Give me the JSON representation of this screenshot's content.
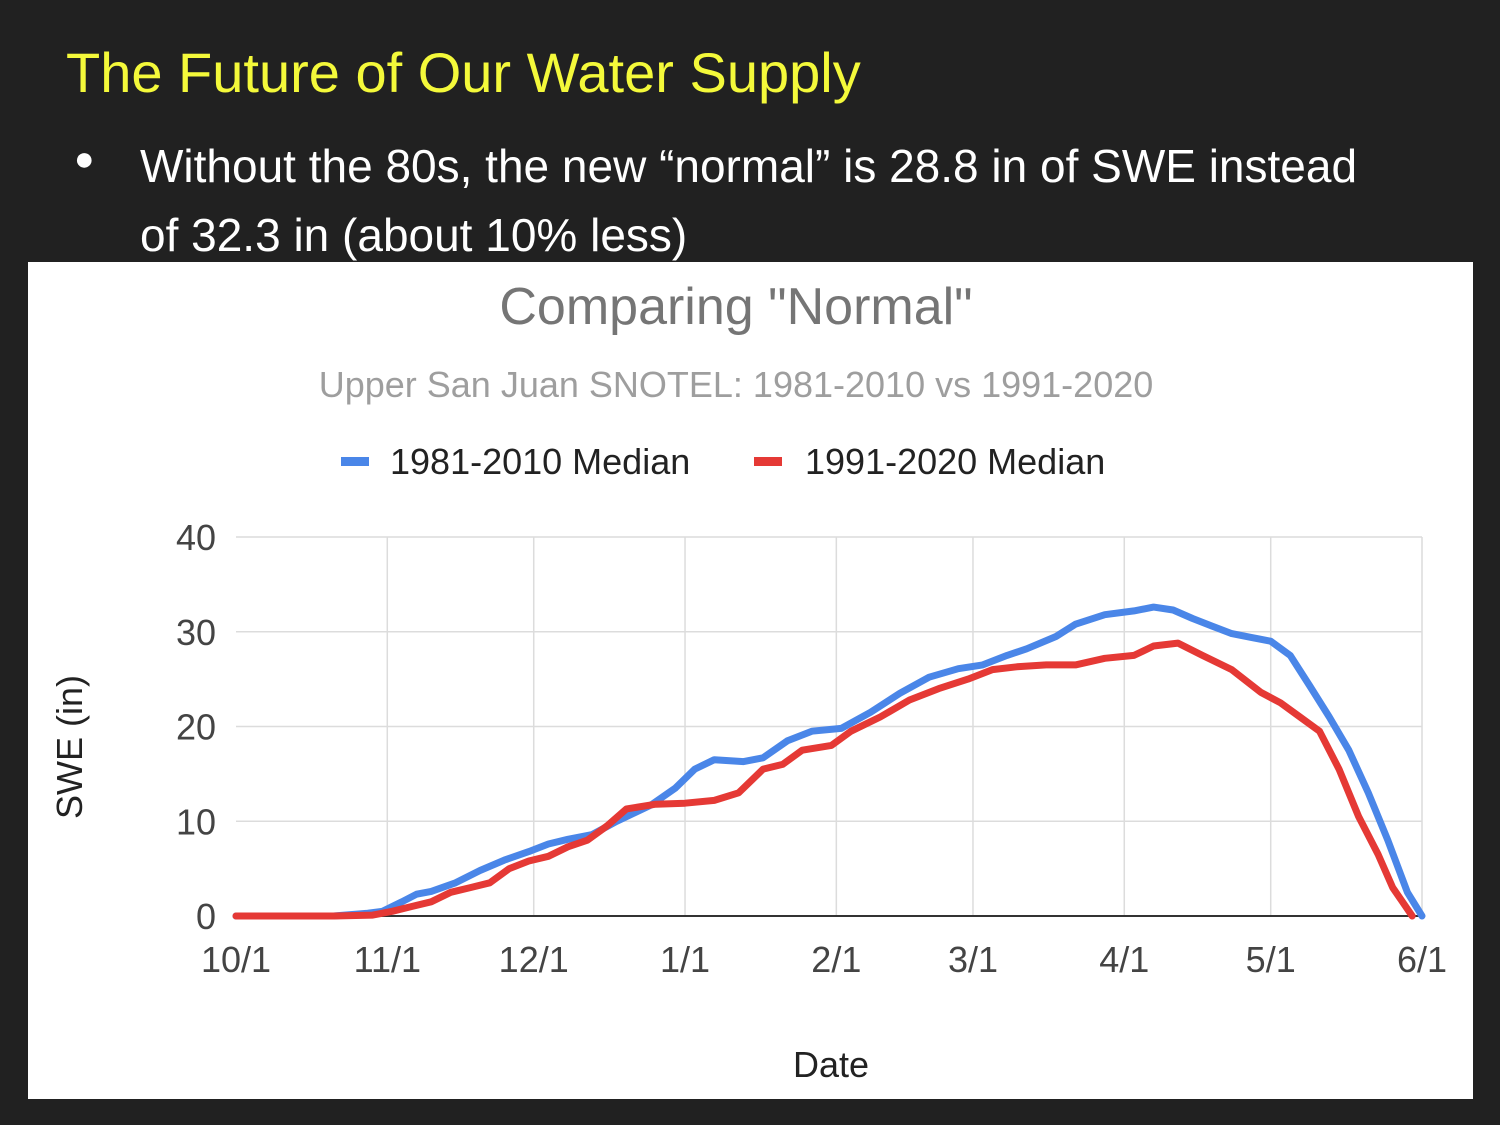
{
  "slide": {
    "title": "The Future of Our Water Supply",
    "bullet_symbol": "●",
    "bullet": "Without the 80s, the new “normal” is 28.8 in of SWE instead of 32.3 in (about 10% less)",
    "title_color": "#f4f93a",
    "background_color": "#212121"
  },
  "chart_data": {
    "type": "line",
    "title": "Comparing \"Normal\"",
    "subtitle": "Upper San Juan SNOTEL: 1981-2010 vs 1991-2020",
    "xlabel": "Date",
    "ylabel": "SWE (in)",
    "ylim": [
      0,
      40
    ],
    "yticks": [
      0,
      10,
      20,
      30,
      40
    ],
    "xlim_days": [
      0,
      243
    ],
    "x_unit": "days since 10/1",
    "xticks": [
      {
        "label": "10/1",
        "day": 0
      },
      {
        "label": "11/1",
        "day": 31
      },
      {
        "label": "12/1",
        "day": 61
      },
      {
        "label": "1/1",
        "day": 92
      },
      {
        "label": "2/1",
        "day": 123
      },
      {
        "label": "3/1",
        "day": 151
      },
      {
        "label": "4/1",
        "day": 182
      },
      {
        "label": "5/1",
        "day": 212
      },
      {
        "label": "6/1",
        "day": 243
      }
    ],
    "grid": true,
    "legend_position": "top",
    "series": [
      {
        "name": "1981-2010 Median",
        "color": "#4a86e8",
        "points": [
          [
            0,
            0
          ],
          [
            10,
            0
          ],
          [
            20,
            0
          ],
          [
            27,
            0.3
          ],
          [
            30,
            0.5
          ],
          [
            34,
            1.5
          ],
          [
            37,
            2.3
          ],
          [
            40,
            2.6
          ],
          [
            45,
            3.5
          ],
          [
            50,
            4.8
          ],
          [
            55,
            5.9
          ],
          [
            60,
            6.8
          ],
          [
            64,
            7.6
          ],
          [
            68,
            8.1
          ],
          [
            73,
            8.6
          ],
          [
            78,
            10.0
          ],
          [
            85,
            11.7
          ],
          [
            90,
            13.5
          ],
          [
            94,
            15.5
          ],
          [
            98,
            16.5
          ],
          [
            104,
            16.3
          ],
          [
            108,
            16.7
          ],
          [
            113,
            18.5
          ],
          [
            118,
            19.5
          ],
          [
            124,
            19.8
          ],
          [
            130,
            21.5
          ],
          [
            136,
            23.5
          ],
          [
            142,
            25.2
          ],
          [
            148,
            26.1
          ],
          [
            153,
            26.5
          ],
          [
            158,
            27.5
          ],
          [
            162,
            28.2
          ],
          [
            168,
            29.5
          ],
          [
            172,
            30.8
          ],
          [
            178,
            31.8
          ],
          [
            184,
            32.2
          ],
          [
            188,
            32.6
          ],
          [
            192,
            32.3
          ],
          [
            196,
            31.4
          ],
          [
            200,
            30.6
          ],
          [
            204,
            29.8
          ],
          [
            208,
            29.4
          ],
          [
            212,
            29.0
          ],
          [
            216,
            27.5
          ],
          [
            220,
            24.3
          ],
          [
            224,
            21.0
          ],
          [
            228,
            17.5
          ],
          [
            232,
            13.0
          ],
          [
            236,
            8.0
          ],
          [
            240,
            2.5
          ],
          [
            243,
            0
          ]
        ]
      },
      {
        "name": "1991-2020 Median",
        "color": "#e53935",
        "points": [
          [
            0,
            0
          ],
          [
            10,
            0
          ],
          [
            20,
            0
          ],
          [
            28,
            0.1
          ],
          [
            32,
            0.5
          ],
          [
            36,
            1.0
          ],
          [
            40,
            1.5
          ],
          [
            44,
            2.5
          ],
          [
            48,
            3.0
          ],
          [
            52,
            3.5
          ],
          [
            56,
            5.0
          ],
          [
            60,
            5.8
          ],
          [
            64,
            6.3
          ],
          [
            68,
            7.3
          ],
          [
            72,
            8.0
          ],
          [
            76,
            9.5
          ],
          [
            80,
            11.3
          ],
          [
            86,
            11.8
          ],
          [
            92,
            11.9
          ],
          [
            98,
            12.2
          ],
          [
            103,
            13.0
          ],
          [
            108,
            15.5
          ],
          [
            112,
            16.0
          ],
          [
            116,
            17.5
          ],
          [
            122,
            18.0
          ],
          [
            126,
            19.5
          ],
          [
            132,
            21.0
          ],
          [
            138,
            22.8
          ],
          [
            144,
            24.0
          ],
          [
            150,
            25.0
          ],
          [
            155,
            26.0
          ],
          [
            160,
            26.3
          ],
          [
            166,
            26.5
          ],
          [
            172,
            26.5
          ],
          [
            178,
            27.2
          ],
          [
            184,
            27.5
          ],
          [
            188,
            28.5
          ],
          [
            193,
            28.8
          ],
          [
            198,
            27.5
          ],
          [
            204,
            26.0
          ],
          [
            210,
            23.6
          ],
          [
            214,
            22.5
          ],
          [
            218,
            21.0
          ],
          [
            222,
            19.5
          ],
          [
            226,
            15.5
          ],
          [
            230,
            10.5
          ],
          [
            234,
            6.5
          ],
          [
            237,
            3.0
          ],
          [
            241,
            0
          ]
        ]
      }
    ]
  }
}
